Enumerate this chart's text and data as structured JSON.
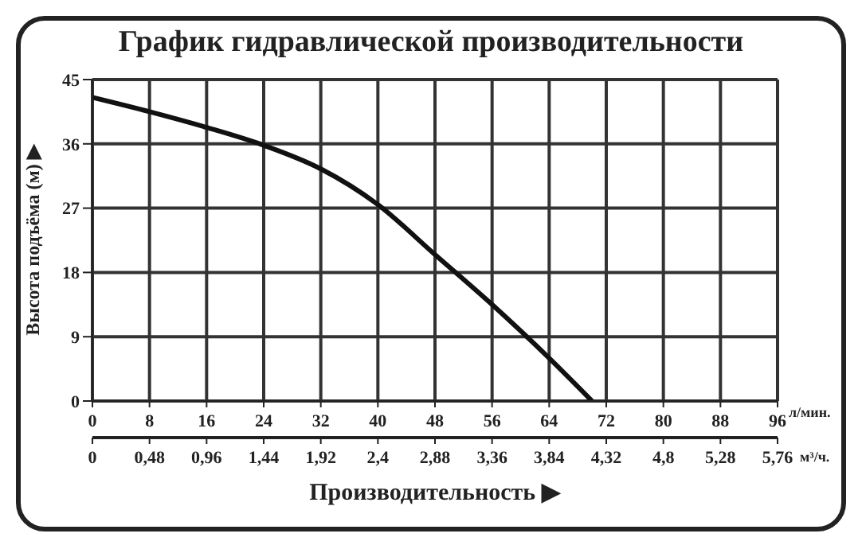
{
  "chart_data": {
    "type": "line",
    "title": "График гидравлической производительности",
    "xlabel": "Производительность ▶",
    "ylabel": "Высота подъёма (м) ▶",
    "annotations": [
      "л/мин.",
      "м³/ч."
    ],
    "x": [
      0,
      8,
      16,
      24,
      32,
      40,
      48,
      56,
      64,
      70
    ],
    "series": [
      {
        "color": "#111111",
        "values": [
          42.5,
          40.5,
          38.3,
          35.8,
          32.5,
          27.5,
          20.5,
          13.5,
          6,
          0
        ]
      }
    ],
    "xlim": [
      0,
      96
    ],
    "xticks": [
      0,
      8,
      16,
      24,
      32,
      40,
      48,
      56,
      64,
      72,
      80,
      88,
      96
    ],
    "x2lim": [
      0,
      5.76
    ],
    "x2ticks": [
      0,
      {
        "value": 0.48,
        "label": "0,48"
      },
      {
        "value": 0.96,
        "label": "0,96"
      },
      {
        "value": 1.44,
        "label": "1,44"
      },
      {
        "value": 1.92,
        "label": "1,92"
      },
      {
        "value": 2.4,
        "label": "2,4"
      },
      {
        "value": 2.88,
        "label": "2,88"
      },
      {
        "value": 3.36,
        "label": "3,36"
      },
      {
        "value": 3.84,
        "label": "3,84"
      },
      {
        "value": 4.32,
        "label": "4,32"
      },
      {
        "value": 4.8,
        "label": "4,8"
      },
      {
        "value": 5.28,
        "label": "5,28"
      },
      {
        "value": 5.76,
        "label": "5,76"
      }
    ],
    "ylim": [
      0,
      45
    ],
    "yticks": [
      0,
      9,
      18,
      27,
      36,
      45
    ],
    "grid": true,
    "legend": false,
    "marker": "none",
    "line_style": "solid"
  }
}
